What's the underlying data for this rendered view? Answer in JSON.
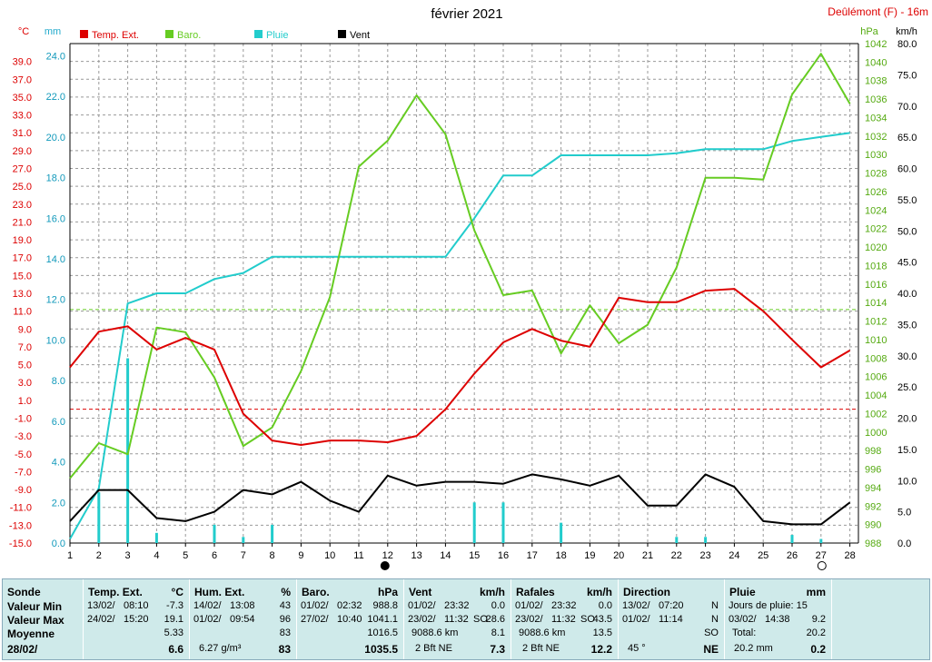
{
  "title": "février 2021",
  "station": "Deûlémont (F) - 16m",
  "colors": {
    "temp": "#dd0000",
    "baro": "#66cc22",
    "rain": "#22cccc",
    "wind": "#000000",
    "grid": "#999999"
  },
  "legend": [
    {
      "label": "Temp. Ext.",
      "color": "#dd0000"
    },
    {
      "label": "Baro.",
      "color": "#66cc22"
    },
    {
      "label": "Pluie",
      "color": "#22cccc"
    },
    {
      "label": "Vent",
      "color": "#000000"
    }
  ],
  "chart_data": {
    "type": "line",
    "title": "février 2021",
    "x": [
      1,
      2,
      3,
      4,
      5,
      6,
      7,
      8,
      9,
      10,
      11,
      12,
      13,
      14,
      15,
      16,
      17,
      18,
      19,
      20,
      21,
      22,
      23,
      24,
      25,
      26,
      27,
      28
    ],
    "axes": {
      "temp": {
        "unit": "°C",
        "ylim": [
          -15,
          41
        ],
        "ticks": [
          "39.0",
          "37.0",
          "35.0",
          "33.0",
          "31.0",
          "29.0",
          "27.0",
          "25.0",
          "23.0",
          "21.0",
          "19.0",
          "17.0",
          "15.0",
          "13.0",
          "11.0",
          "9.0",
          "7.0",
          "5.0",
          "3.0",
          "1.0",
          "-1.0",
          "-3.0",
          "-5.0",
          "-7.0",
          "-9.0",
          "-11.0",
          "-13.0",
          "-15.0"
        ]
      },
      "rain": {
        "unit": "mm",
        "ylim": [
          0,
          24.6
        ],
        "ticks": [
          "24.0",
          "22.0",
          "20.0",
          "18.0",
          "16.0",
          "14.0",
          "12.0",
          "10.0",
          "8.0",
          "6.0",
          "4.0",
          "2.0",
          "0.0"
        ]
      },
      "baro": {
        "unit": "hPa",
        "ylim": [
          988,
          1042
        ],
        "ticks": [
          "1042",
          "1040",
          "1038",
          "1036",
          "1034",
          "1032",
          "1030",
          "1028",
          "1026",
          "1024",
          "1022",
          "1020",
          "1018",
          "1016",
          "1014",
          "1012",
          "1010",
          "1008",
          "1006",
          "1004",
          "1002",
          "1000",
          "998",
          "996",
          "994",
          "992",
          "990",
          "988"
        ]
      },
      "wind": {
        "unit": "km/h",
        "ylim": [
          0,
          80
        ],
        "ticks": [
          "80.0",
          "75.0",
          "70.0",
          "65.0",
          "60.0",
          "55.0",
          "50.0",
          "45.0",
          "40.0",
          "35.0",
          "30.0",
          "25.0",
          "20.0",
          "15.0",
          "10.0",
          "5.0",
          "0.0"
        ]
      }
    },
    "series": [
      {
        "name": "Temp. Ext.",
        "axis": "temp",
        "values": [
          4.7,
          8.7,
          9.3,
          6.7,
          8.0,
          6.7,
          -0.5,
          -3.5,
          -4.0,
          -3.5,
          -3.5,
          -3.7,
          -3.0,
          0.0,
          4.0,
          7.5,
          9.0,
          7.7,
          7.0,
          12.5,
          12.0,
          12.0,
          13.3,
          13.5,
          11.0,
          7.8,
          4.7,
          6.6
        ]
      },
      {
        "name": "Baro.",
        "axis": "baro",
        "values": [
          995,
          998.8,
          997.6,
          1011.3,
          1010.8,
          1005.9,
          998.5,
          1000.5,
          1006.6,
          1014.6,
          1028.7,
          1031.5,
          1036.4,
          1032.2,
          1021.8,
          1014.8,
          1015.3,
          1008.5,
          1013.7,
          1009.6,
          1011.6,
          1017.8,
          1027.5,
          1027.5,
          1027.3,
          1036.5,
          1040.9,
          1035.5
        ]
      },
      {
        "name": "Pluie",
        "axis": "rain",
        "values": [
          0.2,
          2.7,
          11.8,
          12.3,
          12.3,
          13.0,
          13.3,
          14.1,
          14.1,
          14.1,
          14.1,
          14.1,
          14.1,
          14.1,
          16.0,
          18.1,
          18.1,
          19.1,
          19.1,
          19.1,
          19.1,
          19.2,
          19.4,
          19.4,
          19.4,
          19.8,
          20.0,
          20.2
        ]
      },
      {
        "name": "Pluie (bars)",
        "axis": "rain",
        "x": [
          2,
          3,
          4,
          6,
          7,
          8,
          15,
          16,
          18,
          22,
          23,
          26,
          27
        ],
        "values": [
          2.5,
          9.1,
          0.5,
          0.9,
          0.3,
          0.9,
          2.0,
          2.0,
          1.0,
          0.3,
          0.3,
          0.4,
          0.2
        ]
      },
      {
        "name": "Vent",
        "axis": "wind",
        "values": [
          3.5,
          8.5,
          8.5,
          4.0,
          3.5,
          5.0,
          8.5,
          7.8,
          9.8,
          6.8,
          5.0,
          10.8,
          9.2,
          9.8,
          9.8,
          9.5,
          11.0,
          10.2,
          9.2,
          10.8,
          6.0,
          6.0,
          11.0,
          9.0,
          3.5,
          3.0,
          3.0,
          6.5
        ]
      }
    ],
    "reference_lines": [
      {
        "axis": "temp",
        "value": 0.0,
        "color": "#dd0000"
      },
      {
        "axis": "baro",
        "value": 1013.25,
        "color": "#66cc22"
      }
    ],
    "grid": true
  },
  "stats": {
    "rows": [
      "Sonde",
      "Valeur Min",
      "Valeur Max",
      "Moyenne",
      "28/02/"
    ],
    "temp": {
      "header": "Temp. Ext.",
      "unit": "°C",
      "min_date": "13/02/",
      "min_time": "08:10",
      "min": "-7.3",
      "max_date": "24/02/",
      "max_time": "15:20",
      "max": "19.1",
      "avg": "5.33",
      "last": "6.6"
    },
    "hum": {
      "header": "Hum. Ext.",
      "unit": "%",
      "min_date": "14/02/",
      "min_time": "13:08",
      "min": "43",
      "max_date": "01/02/",
      "max_time": "09:54",
      "max": "96",
      "avg": "83",
      "abs": "6.27 g/m³",
      "last": "83"
    },
    "baro": {
      "header": "Baro.",
      "unit": "hPa",
      "min_date": "01/02/",
      "min_time": "02:32",
      "min": "988.8",
      "max_date": "27/02/",
      "max_time": "10:40",
      "max": "1041.1",
      "avg": "1016.5",
      "last": "1035.5"
    },
    "wind": {
      "header": "Vent",
      "unit": "km/h",
      "min_date": "01/02/",
      "min_time": "23:32",
      "min": "0.0",
      "max_date": "23/02/",
      "max_time": "11:32",
      "max_dir": "SO",
      "max": "28.6",
      "dist": "9088.6 km",
      "avg": "8.1",
      "bft": "2 Bft NE",
      "last": "7.3"
    },
    "gust": {
      "header": "Rafales",
      "unit": "km/h",
      "min_date": "01/02/",
      "min_time": "23:32",
      "min": "0.0",
      "max_date": "23/02/",
      "max_time": "11:32",
      "max_dir": "SO",
      "max": "43.5",
      "dist": "9088.6 km",
      "avg": "13.5",
      "bft": "2 Bft NE",
      "last": "12.2"
    },
    "dir": {
      "header": "Direction",
      "min_date": "13/02/",
      "min_time": "07:20",
      "min": "N",
      "max_date": "01/02/",
      "max_time": "11:14",
      "max": "N",
      "avg": "SO",
      "deg": "45 °",
      "last": "NE"
    },
    "rain": {
      "header": "Pluie",
      "unit": "mm",
      "days_label": "Jours de pluie: 15",
      "max_date": "03/02/",
      "max_time": "14:38",
      "max": "9.2",
      "total_label": "Total:",
      "total": "20.2",
      "last_label": "20.2 mm",
      "last": "0.2"
    }
  }
}
